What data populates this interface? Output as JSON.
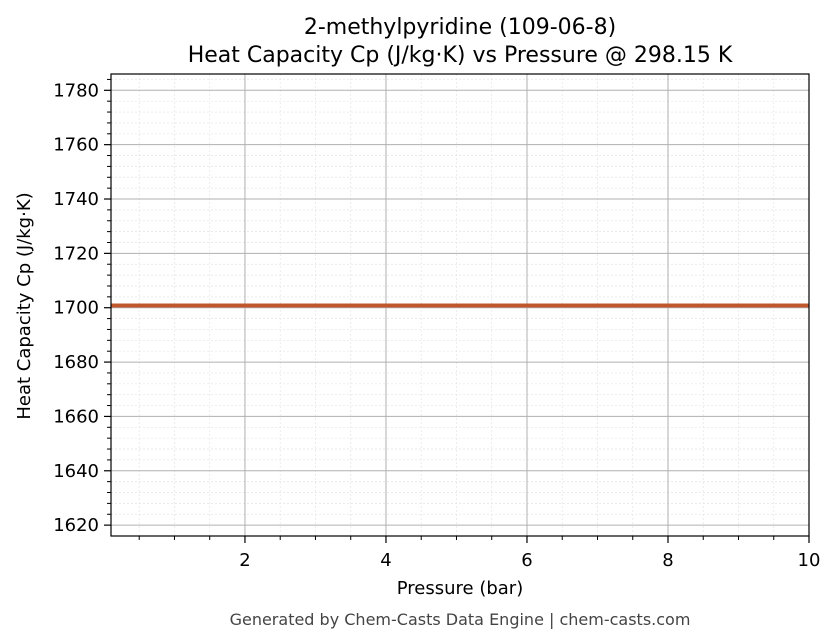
{
  "chart_data": {
    "type": "line",
    "title": "2-methylpyridine (109-06-8)",
    "subtitle": "Heat Capacity Cp (J/kg·K) vs Pressure @ 298.15 K",
    "xlabel": "Pressure (bar)",
    "ylabel": "Heat Capacity Cp (J/kg·K)",
    "xlim": [
      0.1,
      10
    ],
    "ylim": [
      1616,
      1786
    ],
    "x_ticks": [
      2,
      4,
      6,
      8,
      10
    ],
    "y_ticks": [
      1620,
      1640,
      1660,
      1680,
      1700,
      1720,
      1740,
      1760,
      1780
    ],
    "grid": true,
    "series": [
      {
        "x": [
          0.1,
          10
        ],
        "y": [
          1700.8,
          1700.8
        ],
        "color": "#c0562c"
      }
    ]
  },
  "footer": {
    "text": "Generated by Chem-Casts Data Engine | chem-casts.com"
  }
}
